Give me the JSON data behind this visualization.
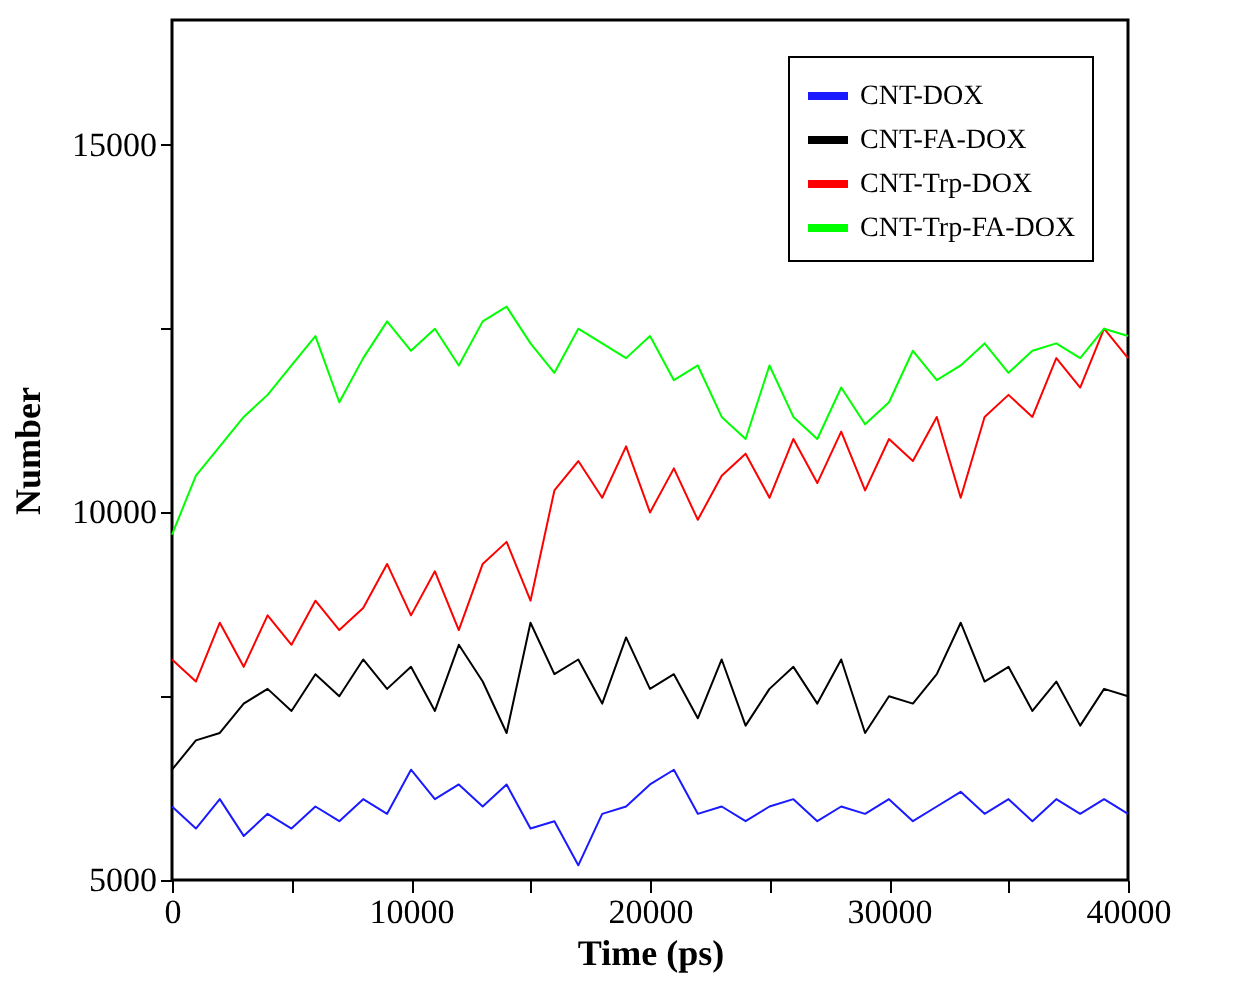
{
  "chart_data": {
    "type": "line",
    "xlabel": "Time (ps)",
    "ylabel": "Number",
    "x": [
      0,
      1000,
      2000,
      3000,
      4000,
      5000,
      6000,
      7000,
      8000,
      9000,
      10000,
      11000,
      12000,
      13000,
      14000,
      15000,
      16000,
      17000,
      18000,
      19000,
      20000,
      21000,
      22000,
      23000,
      24000,
      25000,
      26000,
      27000,
      28000,
      29000,
      30000,
      31000,
      32000,
      33000,
      34000,
      35000,
      36000,
      37000,
      38000,
      39000,
      40000
    ],
    "series": [
      {
        "name": "CNT-DOX",
        "color": "#1a1aff",
        "values": [
          6000,
          5700,
          6100,
          5600,
          5900,
          5700,
          6000,
          5800,
          6100,
          5900,
          6500,
          6100,
          6300,
          6000,
          6300,
          5700,
          5800,
          5200,
          5900,
          6000,
          6300,
          6500,
          5900,
          6000,
          5800,
          6000,
          6100,
          5800,
          6000,
          5900,
          6100,
          5800,
          6000,
          6200,
          5900,
          6100,
          5800,
          6100,
          5900,
          6100,
          5900
        ]
      },
      {
        "name": "CNT-FA-DOX",
        "color": "#000000",
        "values": [
          6500,
          6900,
          7000,
          7400,
          7600,
          7300,
          7800,
          7500,
          8000,
          7600,
          7900,
          7300,
          8200,
          7700,
          7000,
          8500,
          7800,
          8000,
          7400,
          8300,
          7600,
          7800,
          7200,
          8000,
          7100,
          7600,
          7900,
          7400,
          8000,
          7000,
          7500,
          7400,
          7800,
          8500,
          7700,
          7900,
          7300,
          7700,
          7100,
          7600,
          7500
        ]
      },
      {
        "name": "CNT-Trp-DOX",
        "color": "#ff0000",
        "values": [
          8000,
          7700,
          8500,
          7900,
          8600,
          8200,
          8800,
          8400,
          8700,
          9300,
          8600,
          9200,
          8400,
          9300,
          9600,
          8800,
          10300,
          10700,
          10200,
          10900,
          10000,
          10600,
          9900,
          10500,
          10800,
          10200,
          11000,
          10400,
          11100,
          10300,
          11000,
          10700,
          11300,
          10200,
          11300,
          11600,
          11300,
          12100,
          11700,
          12500,
          12100
        ]
      },
      {
        "name": "CNT-Trp-FA-DOX",
        "color": "#00ff00",
        "values": [
          9700,
          10500,
          10900,
          11300,
          11600,
          12000,
          12400,
          11500,
          12100,
          12600,
          12200,
          12500,
          12000,
          12600,
          12800,
          12300,
          11900,
          12500,
          12300,
          12100,
          12400,
          11800,
          12000,
          11300,
          11000,
          12000,
          11300,
          11000,
          11700,
          11200,
          11500,
          12200,
          11800,
          12000,
          12300,
          11900,
          12200,
          12300,
          12100,
          12500,
          12400
        ]
      }
    ],
    "xlim": [
      0,
      40000
    ],
    "xticks": [
      0,
      {
        "value": 5000,
        "label": null
      },
      10000,
      {
        "value": 15000,
        "label": null
      },
      20000,
      {
        "value": 25000,
        "label": null
      },
      30000,
      {
        "value": 35000,
        "label": null
      },
      40000
    ],
    "ylim": [
      5000,
      16700
    ],
    "yticks": [
      5000,
      {
        "value": 7500,
        "label": null
      },
      10000,
      {
        "value": 12500,
        "label": null
      },
      15000
    ],
    "grid": false,
    "legend": "top right",
    "marker": "none",
    "line_style": "solid"
  }
}
